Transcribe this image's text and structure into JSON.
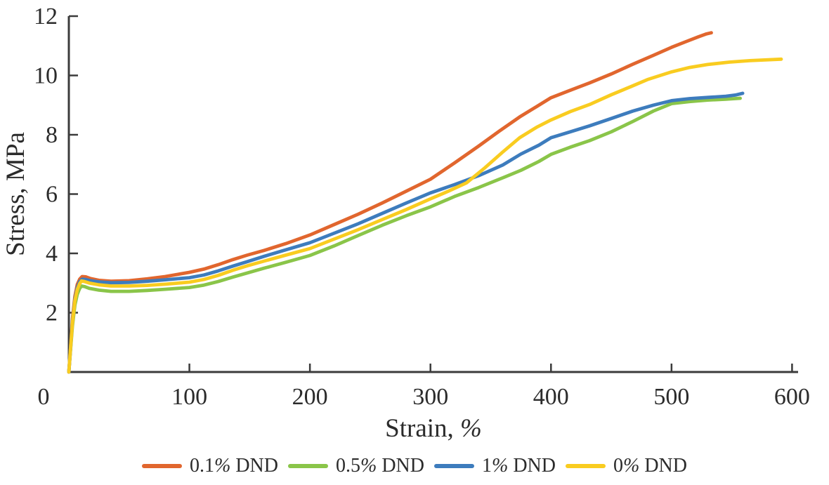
{
  "figure": {
    "background": "#ffffff",
    "axis_color": "#3b3b3b",
    "text_color": "#2b2b2b"
  },
  "chart_data": {
    "type": "line",
    "title": "",
    "xlabel": "Strain, %",
    "ylabel": "Stress, MPa",
    "xlim": [
      0,
      605
    ],
    "ylim": [
      0,
      12
    ],
    "x_ticks": [
      0,
      100,
      200,
      300,
      400,
      500,
      600
    ],
    "y_ticks": [
      2,
      4,
      6,
      8,
      10,
      12
    ],
    "grid": false,
    "legend_position": "bottom",
    "series": [
      {
        "name": "0.1% DND",
        "color": "#E1662E",
        "points": [
          [
            0,
            0
          ],
          [
            1.5,
            0.9
          ],
          [
            3,
            1.8
          ],
          [
            5,
            2.55
          ],
          [
            7,
            2.95
          ],
          [
            9,
            3.13
          ],
          [
            11,
            3.22
          ],
          [
            14,
            3.21
          ],
          [
            18,
            3.15
          ],
          [
            25,
            3.09
          ],
          [
            35,
            3.06
          ],
          [
            50,
            3.08
          ],
          [
            65,
            3.14
          ],
          [
            80,
            3.22
          ],
          [
            100,
            3.36
          ],
          [
            112,
            3.47
          ],
          [
            124,
            3.62
          ],
          [
            136,
            3.79
          ],
          [
            148,
            3.94
          ],
          [
            162,
            4.1
          ],
          [
            180,
            4.33
          ],
          [
            200,
            4.62
          ],
          [
            220,
            4.97
          ],
          [
            240,
            5.32
          ],
          [
            260,
            5.7
          ],
          [
            280,
            6.1
          ],
          [
            300,
            6.5
          ],
          [
            320,
            7.05
          ],
          [
            340,
            7.62
          ],
          [
            357,
            8.12
          ],
          [
            374,
            8.6
          ],
          [
            388,
            8.95
          ],
          [
            400,
            9.25
          ],
          [
            416,
            9.5
          ],
          [
            432,
            9.75
          ],
          [
            450,
            10.05
          ],
          [
            468,
            10.38
          ],
          [
            485,
            10.68
          ],
          [
            500,
            10.95
          ],
          [
            512,
            11.14
          ],
          [
            522,
            11.3
          ],
          [
            529,
            11.4
          ],
          [
            533,
            11.44
          ]
        ]
      },
      {
        "name": "0.5% DND",
        "color": "#8AC549",
        "points": [
          [
            0,
            0
          ],
          [
            1.5,
            0.8
          ],
          [
            3,
            1.55
          ],
          [
            5,
            2.25
          ],
          [
            7,
            2.62
          ],
          [
            9,
            2.82
          ],
          [
            10.5,
            2.9
          ],
          [
            13,
            2.88
          ],
          [
            17,
            2.82
          ],
          [
            25,
            2.76
          ],
          [
            35,
            2.72
          ],
          [
            50,
            2.72
          ],
          [
            65,
            2.75
          ],
          [
            80,
            2.79
          ],
          [
            100,
            2.85
          ],
          [
            112,
            2.93
          ],
          [
            124,
            3.05
          ],
          [
            136,
            3.2
          ],
          [
            148,
            3.34
          ],
          [
            162,
            3.5
          ],
          [
            180,
            3.7
          ],
          [
            200,
            3.93
          ],
          [
            220,
            4.25
          ],
          [
            240,
            4.6
          ],
          [
            260,
            4.95
          ],
          [
            280,
            5.27
          ],
          [
            300,
            5.57
          ],
          [
            320,
            5.92
          ],
          [
            340,
            6.22
          ],
          [
            360,
            6.55
          ],
          [
            375,
            6.8
          ],
          [
            390,
            7.1
          ],
          [
            400,
            7.34
          ],
          [
            416,
            7.58
          ],
          [
            432,
            7.8
          ],
          [
            450,
            8.1
          ],
          [
            468,
            8.45
          ],
          [
            485,
            8.8
          ],
          [
            500,
            9.05
          ],
          [
            515,
            9.12
          ],
          [
            530,
            9.17
          ],
          [
            545,
            9.2
          ],
          [
            557,
            9.23
          ]
        ]
      },
      {
        "name": "1% DND",
        "color": "#3D7CBD",
        "points": [
          [
            0,
            0
          ],
          [
            1.5,
            0.85
          ],
          [
            3,
            1.7
          ],
          [
            5,
            2.45
          ],
          [
            7,
            2.85
          ],
          [
            9,
            3.05
          ],
          [
            11,
            3.13
          ],
          [
            14,
            3.12
          ],
          [
            18,
            3.08
          ],
          [
            25,
            3.04
          ],
          [
            35,
            3.01
          ],
          [
            50,
            3.02
          ],
          [
            65,
            3.06
          ],
          [
            80,
            3.11
          ],
          [
            100,
            3.18
          ],
          [
            112,
            3.27
          ],
          [
            124,
            3.41
          ],
          [
            136,
            3.57
          ],
          [
            148,
            3.72
          ],
          [
            162,
            3.9
          ],
          [
            180,
            4.12
          ],
          [
            200,
            4.36
          ],
          [
            220,
            4.68
          ],
          [
            240,
            5.0
          ],
          [
            260,
            5.35
          ],
          [
            280,
            5.7
          ],
          [
            300,
            6.04
          ],
          [
            320,
            6.32
          ],
          [
            340,
            6.62
          ],
          [
            360,
            6.98
          ],
          [
            375,
            7.35
          ],
          [
            390,
            7.65
          ],
          [
            400,
            7.9
          ],
          [
            416,
            8.1
          ],
          [
            432,
            8.3
          ],
          [
            450,
            8.55
          ],
          [
            468,
            8.8
          ],
          [
            485,
            9.0
          ],
          [
            500,
            9.15
          ],
          [
            515,
            9.22
          ],
          [
            530,
            9.26
          ],
          [
            545,
            9.3
          ],
          [
            553,
            9.34
          ],
          [
            559,
            9.4
          ]
        ]
      },
      {
        "name": "0% DND",
        "color": "#F9CC20",
        "points": [
          [
            0,
            0
          ],
          [
            1.5,
            0.85
          ],
          [
            3,
            1.65
          ],
          [
            5,
            2.4
          ],
          [
            7,
            2.78
          ],
          [
            9,
            2.98
          ],
          [
            10.5,
            3.07
          ],
          [
            13,
            3.05
          ],
          [
            17,
            3.0
          ],
          [
            25,
            2.94
          ],
          [
            35,
            2.9
          ],
          [
            50,
            2.9
          ],
          [
            65,
            2.92
          ],
          [
            80,
            2.96
          ],
          [
            100,
            3.03
          ],
          [
            112,
            3.12
          ],
          [
            124,
            3.26
          ],
          [
            136,
            3.43
          ],
          [
            148,
            3.58
          ],
          [
            162,
            3.74
          ],
          [
            180,
            3.94
          ],
          [
            200,
            4.16
          ],
          [
            220,
            4.48
          ],
          [
            240,
            4.8
          ],
          [
            260,
            5.14
          ],
          [
            280,
            5.48
          ],
          [
            300,
            5.84
          ],
          [
            315,
            6.1
          ],
          [
            330,
            6.38
          ],
          [
            345,
            6.88
          ],
          [
            360,
            7.42
          ],
          [
            374,
            7.9
          ],
          [
            388,
            8.25
          ],
          [
            400,
            8.5
          ],
          [
            416,
            8.78
          ],
          [
            432,
            9.02
          ],
          [
            450,
            9.35
          ],
          [
            466,
            9.62
          ],
          [
            480,
            9.86
          ],
          [
            500,
            10.12
          ],
          [
            515,
            10.27
          ],
          [
            530,
            10.37
          ],
          [
            548,
            10.45
          ],
          [
            565,
            10.5
          ],
          [
            591,
            10.55
          ]
        ]
      }
    ],
    "origin_label": "0"
  }
}
